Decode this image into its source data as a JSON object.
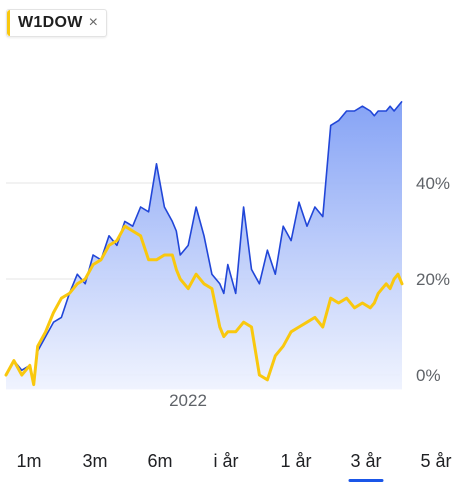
{
  "legend_chip": {
    "label": "W1DOW",
    "close_glyph": "×",
    "swatch_color": "#f9c80e"
  },
  "time_ranges": [
    "1m",
    "3m",
    "6m",
    "i år",
    "1 år",
    "3 år",
    "5 år"
  ],
  "active_range": "3 år",
  "colors": {
    "compare_line": "#2146d8",
    "compare_fill_top": "#7f9ef5",
    "compare_fill_bottom": "#eef2fe",
    "main_line": "#f9c80e",
    "grid": "#e6e6e6",
    "active_underline": "#1a56e8"
  },
  "chart_data": {
    "type": "line",
    "title": "",
    "xlabel": "",
    "ylabel": "",
    "x_tick_labels": [
      "2022"
    ],
    "y_ticks": [
      0,
      20,
      40
    ],
    "y_tick_labels": [
      "0%",
      "20%",
      "40%"
    ],
    "ylim": [
      -3,
      60
    ],
    "x_range": [
      0,
      100
    ],
    "grid": true,
    "series": [
      {
        "role": "comparison",
        "color": "#2146d8",
        "filled": true,
        "x": [
          0,
          2,
          4,
          6,
          7,
          8,
          10,
          12,
          14,
          16,
          18,
          20,
          22,
          24,
          26,
          28,
          30,
          32,
          34,
          36,
          38,
          40,
          42,
          43,
          44,
          46,
          48,
          50,
          52,
          54,
          55,
          56,
          58,
          60,
          62,
          64,
          66,
          68,
          70,
          72,
          74,
          76,
          78,
          80,
          82,
          84,
          86,
          88,
          90,
          92,
          93,
          94,
          95,
          96,
          97,
          98,
          99,
          100
        ],
        "y": [
          0,
          3,
          1,
          2,
          -2,
          5,
          8,
          11,
          12,
          17,
          21,
          19,
          25,
          24,
          29,
          27,
          32,
          31,
          35,
          34,
          44,
          35,
          32,
          30,
          25,
          27,
          35,
          29,
          21,
          19,
          17,
          23,
          17,
          35,
          22,
          19,
          26,
          21,
          31,
          28,
          36,
          31,
          35,
          33,
          52,
          53,
          55,
          55,
          56,
          55,
          54,
          55,
          55,
          55,
          56,
          55,
          56,
          57
        ]
      },
      {
        "role": "primary",
        "color": "#f9c80e",
        "filled": false,
        "x": [
          0,
          2,
          4,
          6,
          7,
          8,
          10,
          12,
          14,
          16,
          18,
          20,
          22,
          24,
          26,
          28,
          30,
          32,
          34,
          36,
          38,
          40,
          42,
          43,
          44,
          46,
          48,
          50,
          52,
          54,
          55,
          56,
          58,
          60,
          62,
          64,
          66,
          68,
          70,
          72,
          74,
          76,
          78,
          80,
          82,
          84,
          86,
          88,
          90,
          92,
          93,
          94,
          95,
          96,
          97,
          98,
          99,
          100
        ],
        "y": [
          0,
          3,
          0,
          2,
          -2,
          6,
          9,
          13,
          16,
          17,
          19,
          20,
          23,
          24,
          27,
          28,
          31,
          30,
          29,
          24,
          24,
          25,
          25,
          22,
          20,
          18,
          21,
          19,
          18,
          10,
          8,
          9,
          9,
          11,
          10,
          0,
          -1,
          4,
          6,
          9,
          10,
          11,
          12,
          10,
          16,
          15,
          16,
          14,
          15,
          14,
          15,
          17,
          18,
          19,
          18,
          20,
          21,
          19
        ]
      }
    ]
  }
}
